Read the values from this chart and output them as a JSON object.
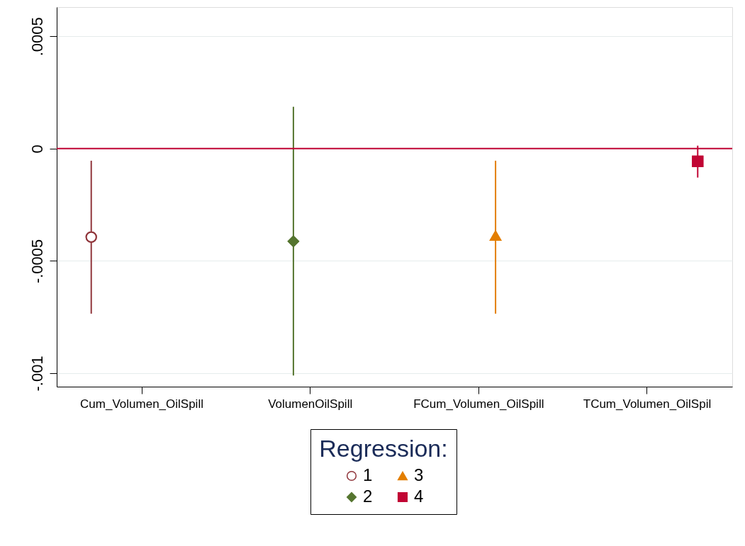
{
  "chart_data": {
    "type": "scatter",
    "categories": [
      "Cum_Volumen_OilSpill",
      "VolumenOilSpill",
      "FCum_Volumen_OilSpill",
      "TCum_Volumen_OilSpil"
    ],
    "legend_title": "Regression:",
    "series": [
      {
        "name": "1",
        "color": "#90353b",
        "marker": "circle",
        "values": [
          -0.000394,
          null,
          null,
          null
        ],
        "errors": [
          [
            -0.000735,
            -5.4e-05
          ],
          null,
          null,
          null
        ]
      },
      {
        "name": "2",
        "color": "#55752f",
        "marker": "diamond",
        "values": [
          null,
          -0.000413,
          null,
          null
        ],
        "errors": [
          null,
          [
            -0.00101,
            0.000186
          ],
          null,
          null
        ]
      },
      {
        "name": "3",
        "color": "#e37e00",
        "marker": "triangle",
        "values": [
          null,
          null,
          -0.000388,
          null
        ],
        "errors": [
          null,
          null,
          [
            -0.000735,
            -5.4e-05
          ],
          null
        ]
      },
      {
        "name": "4",
        "color": "#c10534",
        "marker": "square",
        "values": [
          null,
          null,
          null,
          -5.7e-05
        ],
        "errors": [
          null,
          null,
          null,
          [
            -0.000129,
            1.3e-05
          ]
        ]
      }
    ],
    "ylim": [
      -0.00106,
      0.00063
    ],
    "yticks": [
      {
        "value": -0.001,
        "label": "-.001"
      },
      {
        "value": -0.0005,
        "label": "-.0005"
      },
      0,
      {
        "value": 0.0005,
        "label": ".0005"
      }
    ],
    "ref_lines": [
      {
        "axis": "y",
        "value": 0,
        "color": "#c10534"
      }
    ],
    "grid": "y",
    "legend": "bottom"
  }
}
